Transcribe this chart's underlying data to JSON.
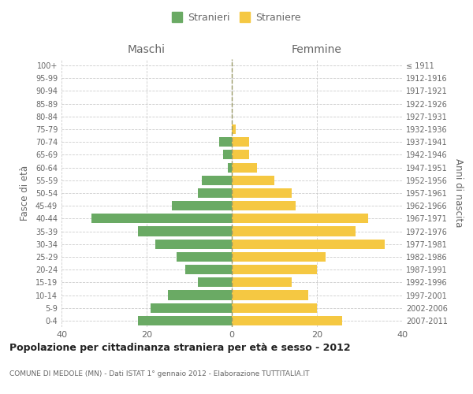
{
  "age_groups": [
    "0-4",
    "5-9",
    "10-14",
    "15-19",
    "20-24",
    "25-29",
    "30-34",
    "35-39",
    "40-44",
    "45-49",
    "50-54",
    "55-59",
    "60-64",
    "65-69",
    "70-74",
    "75-79",
    "80-84",
    "85-89",
    "90-94",
    "95-99",
    "100+"
  ],
  "birth_years": [
    "2007-2011",
    "2002-2006",
    "1997-2001",
    "1992-1996",
    "1987-1991",
    "1982-1986",
    "1977-1981",
    "1972-1976",
    "1967-1971",
    "1962-1966",
    "1957-1961",
    "1952-1956",
    "1947-1951",
    "1942-1946",
    "1937-1941",
    "1932-1936",
    "1927-1931",
    "1922-1926",
    "1917-1921",
    "1912-1916",
    "≤ 1911"
  ],
  "males": [
    22,
    19,
    15,
    8,
    11,
    13,
    18,
    22,
    33,
    14,
    8,
    7,
    1,
    2,
    3,
    0,
    0,
    0,
    0,
    0,
    0
  ],
  "females": [
    26,
    20,
    18,
    14,
    20,
    22,
    36,
    29,
    32,
    15,
    14,
    10,
    6,
    4,
    4,
    1,
    0,
    0,
    0,
    0,
    0
  ],
  "male_color": "#6aaa64",
  "female_color": "#f5c842",
  "bar_height": 0.75,
  "xlim": 40,
  "title": "Popolazione per cittadinanza straniera per età e sesso - 2012",
  "subtitle": "COMUNE DI MEDOLE (MN) - Dati ISTAT 1° gennaio 2012 - Elaborazione TUTTITALIA.IT",
  "xlabel_left": "Maschi",
  "xlabel_right": "Femmine",
  "ylabel_left": "Fasce di età",
  "ylabel_right": "Anni di nascita",
  "legend_male": "Stranieri",
  "legend_female": "Straniere",
  "background_color": "#ffffff",
  "grid_color": "#cccccc",
  "tick_color": "#aaaaaa",
  "text_color": "#666666"
}
